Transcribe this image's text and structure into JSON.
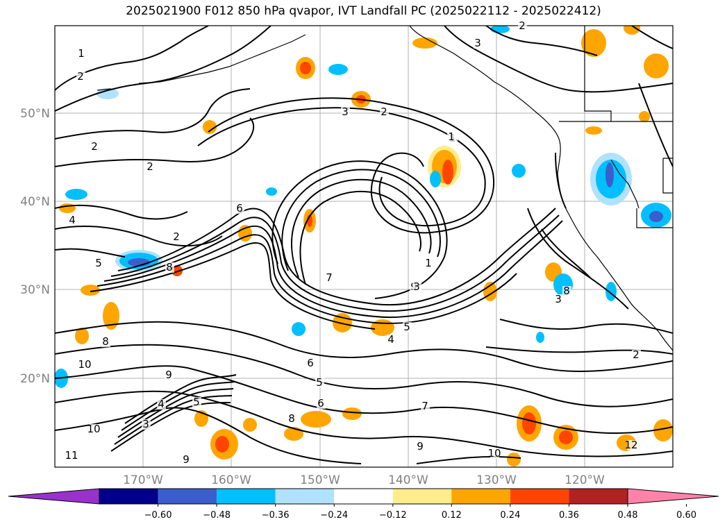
{
  "title": "2025021900 F012 850 hPa qvapor, IVT Landfall PC (2025022112 - 2025022412)",
  "map": {
    "lon_labels": [
      "170°W",
      "160°W",
      "150°W",
      "140°W",
      "130°W",
      "120°W"
    ],
    "lat_labels": [
      "50°N",
      "40°N",
      "30°N",
      "20°N"
    ],
    "gridlines": true
  },
  "colorbar": {
    "colors": [
      "#9932cc",
      "#00008b",
      "#3a5fcd",
      "#00bfff",
      "#b0e2ff",
      "#ffffff",
      "#ffec8b",
      "#ffa500",
      "#ff4500",
      "#b22222",
      "#ff82ab"
    ],
    "tick_labels": [
      "−0.60",
      "−0.48",
      "−0.36",
      "−0.24",
      "−0.12",
      "0.12",
      "0.24",
      "0.36",
      "0.48",
      "0.60"
    ],
    "extend": "both"
  },
  "contour_labels": [
    "1",
    "2",
    "3",
    "2",
    "1",
    "2",
    "2",
    "2",
    "6",
    "5",
    "8",
    "4",
    "8",
    "10",
    "6",
    "5",
    "6",
    "9",
    "4",
    "5",
    "8",
    "9",
    "10",
    "11",
    "7",
    "9",
    "10",
    "2",
    "1",
    "12",
    "9",
    "8",
    "3",
    "3",
    "7",
    "5",
    "4",
    "1",
    "2",
    "3",
    "3"
  ]
}
